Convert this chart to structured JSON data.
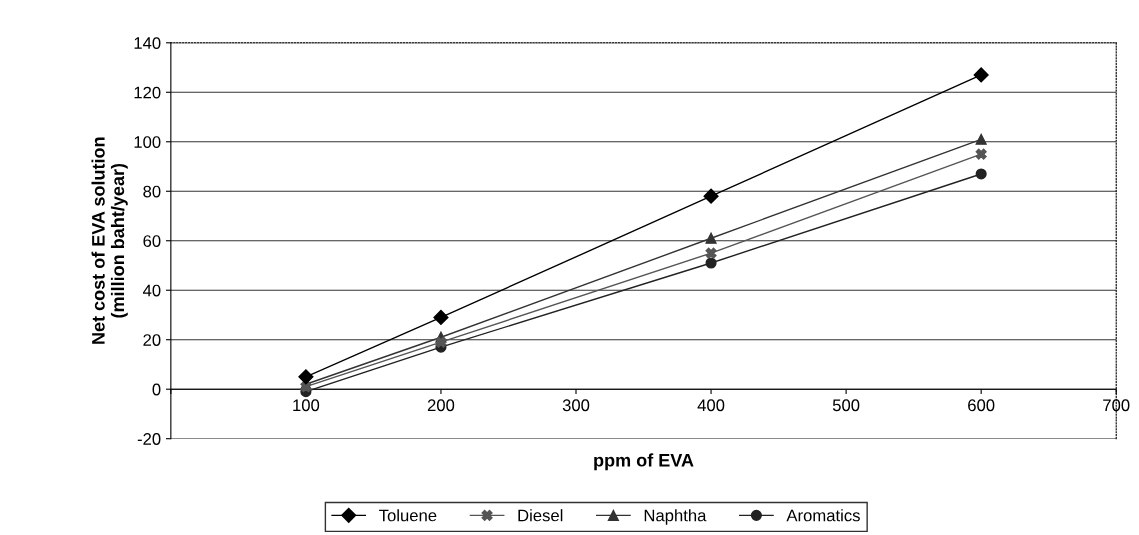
{
  "chart_data": {
    "type": "line",
    "xlabel": "ppm of EVA",
    "ylabel": "Net cost of EVA solution\n(million baht/year)",
    "x": [
      100,
      200,
      400,
      600
    ],
    "xlim": [
      0,
      700
    ],
    "xticks": [
      {
        "value": 0,
        "label": null
      },
      100,
      200,
      300,
      400,
      500,
      600,
      700
    ],
    "ylim": [
      -20,
      140
    ],
    "yticks": [
      -20,
      0,
      20,
      40,
      60,
      80,
      100,
      120,
      140
    ],
    "grid": "y",
    "legend": "bottom",
    "series": [
      {
        "name": "Toluene",
        "color": "#000000",
        "marker": "diamond",
        "values": [
          5,
          29,
          78,
          127
        ]
      },
      {
        "name": "Diesel",
        "color": "#555555",
        "marker": "cross",
        "values": [
          1,
          19,
          55,
          95
        ]
      },
      {
        "name": "Naphtha",
        "color": "#333333",
        "marker": "triangle",
        "values": [
          2,
          21,
          61,
          101
        ]
      },
      {
        "name": "Aromatics",
        "color": "#222222",
        "marker": "circle",
        "values": [
          -1,
          17,
          51,
          87
        ]
      }
    ]
  }
}
